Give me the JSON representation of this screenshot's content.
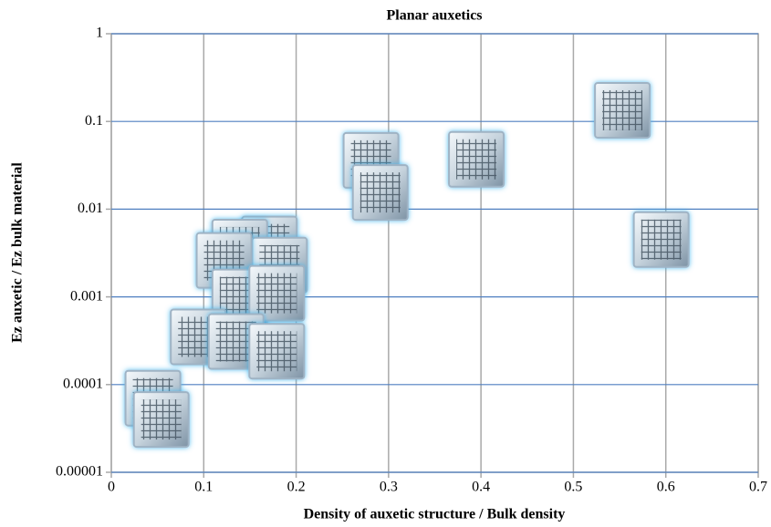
{
  "chart_data": {
    "type": "scatter",
    "title": "Planar auxetics",
    "x_label": "Density of auxetic structure / Bulk density",
    "y_label": "Ez auxetic / Ez bulk material",
    "yscale": "log",
    "grid": true,
    "color": "#9fb3c4",
    "xlim": [
      0,
      0.7
    ],
    "xticks": [
      0,
      0.1,
      0.2,
      0.3,
      0.4,
      0.5,
      0.6,
      0.7
    ],
    "ylim": [
      1e-05,
      1
    ],
    "yticks": [
      1,
      0.1,
      0.01,
      0.001,
      0.0001,
      1e-05
    ],
    "series": [
      {
        "name": "Planar auxetics",
        "x": [
          0.553,
          0.595,
          0.395,
          0.281,
          0.291,
          0.171,
          0.139,
          0.182,
          0.122,
          0.139,
          0.179,
          0.094,
          0.135,
          0.179,
          0.045,
          0.054
        ],
        "values": [
          0.134,
          0.0045,
          0.037,
          0.036,
          0.0155,
          0.004,
          0.0037,
          0.0023,
          0.0026,
          0.001,
          0.0011,
          0.00035,
          0.00031,
          0.00024,
          7e-05,
          4e-05
        ]
      }
    ]
  }
}
